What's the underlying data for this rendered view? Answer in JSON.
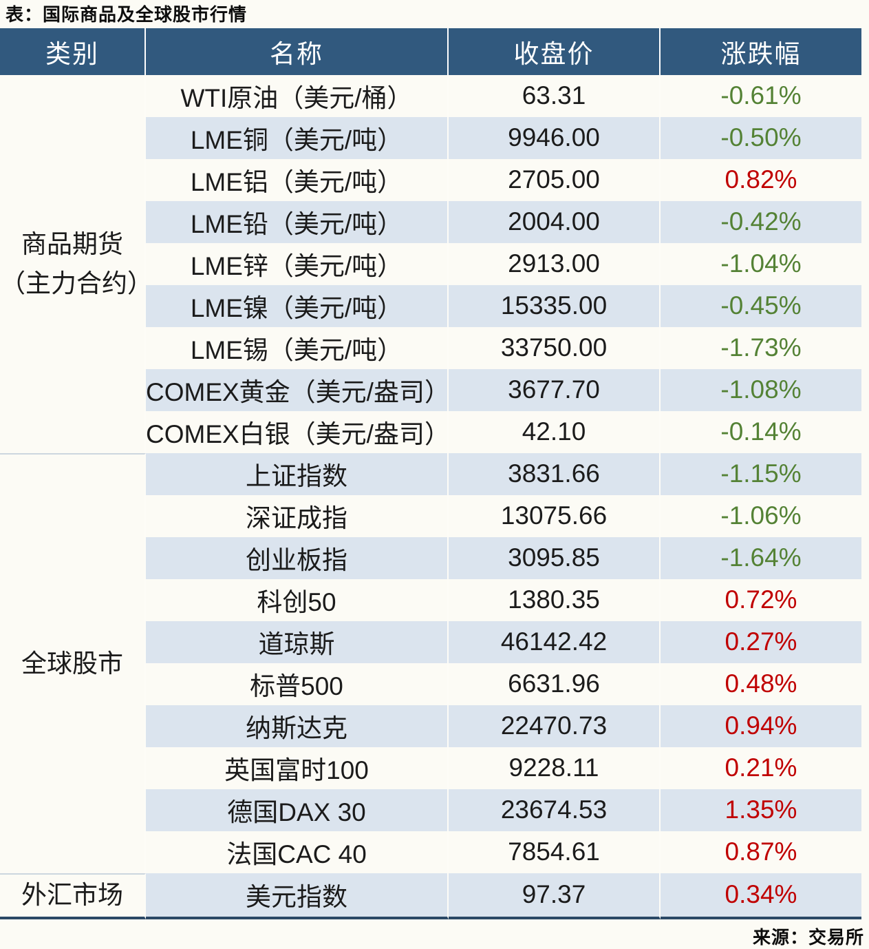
{
  "title": "表：国际商品及全球股市行情",
  "source": "来源：交易所",
  "colors": {
    "header_bg": "#31597e",
    "header_text": "#ffffff",
    "stripe_row_bg": "#dbe4ee",
    "plain_row_bg": "#fcfbf5",
    "positive_change": "#c00000",
    "negative_change": "#548235",
    "section_divider": "#ccd6df",
    "table_bottom_border": "#2b4966",
    "body_text": "#1b1b1b"
  },
  "chart_data": {
    "type": "table",
    "title": "表：国际商品及全球股市行情",
    "columns": [
      "类别",
      "名称",
      "收盘价",
      "涨跌幅"
    ],
    "color_rule": "positive changes shown red, negative changes shown green",
    "sections": [
      {
        "category_lines": [
          "商品期货",
          "（主力合约）"
        ],
        "rows": [
          {
            "name": "WTI原油（美元/桶）",
            "close": "63.31",
            "change": "-0.61%"
          },
          {
            "name": "LME铜（美元/吨）",
            "close": "9946.00",
            "change": "-0.50%"
          },
          {
            "name": "LME铝（美元/吨）",
            "close": "2705.00",
            "change": "0.82%"
          },
          {
            "name": "LME铅（美元/吨）",
            "close": "2004.00",
            "change": "-0.42%"
          },
          {
            "name": "LME锌（美元/吨）",
            "close": "2913.00",
            "change": "-1.04%"
          },
          {
            "name": "LME镍（美元/吨）",
            "close": "15335.00",
            "change": "-0.45%"
          },
          {
            "name": "LME锡（美元/吨）",
            "close": "33750.00",
            "change": "-1.73%"
          },
          {
            "name": "COMEX黄金（美元/盎司）",
            "close": "3677.70",
            "change": "-1.08%"
          },
          {
            "name": "COMEX白银（美元/盎司）",
            "close": "42.10",
            "change": "-0.14%"
          }
        ]
      },
      {
        "category_lines": [
          "全球股市"
        ],
        "rows": [
          {
            "name": "上证指数",
            "close": "3831.66",
            "change": "-1.15%"
          },
          {
            "name": "深证成指",
            "close": "13075.66",
            "change": "-1.06%"
          },
          {
            "name": "创业板指",
            "close": "3095.85",
            "change": "-1.64%"
          },
          {
            "name": "科创50",
            "close": "1380.35",
            "change": "0.72%"
          },
          {
            "name": "道琼斯",
            "close": "46142.42",
            "change": "0.27%"
          },
          {
            "name": "标普500",
            "close": "6631.96",
            "change": "0.48%"
          },
          {
            "name": "纳斯达克",
            "close": "22470.73",
            "change": "0.94%"
          },
          {
            "name": "英国富时100",
            "close": "9228.11",
            "change": "0.21%"
          },
          {
            "name": "德国DAX 30",
            "close": "23674.53",
            "change": "1.35%"
          },
          {
            "name": "法国CAC 40",
            "close": "7854.61",
            "change": "0.87%"
          }
        ]
      },
      {
        "category_lines": [
          "外汇市场"
        ],
        "rows": [
          {
            "name": "美元指数",
            "close": "97.37",
            "change": "0.34%"
          }
        ]
      }
    ]
  }
}
